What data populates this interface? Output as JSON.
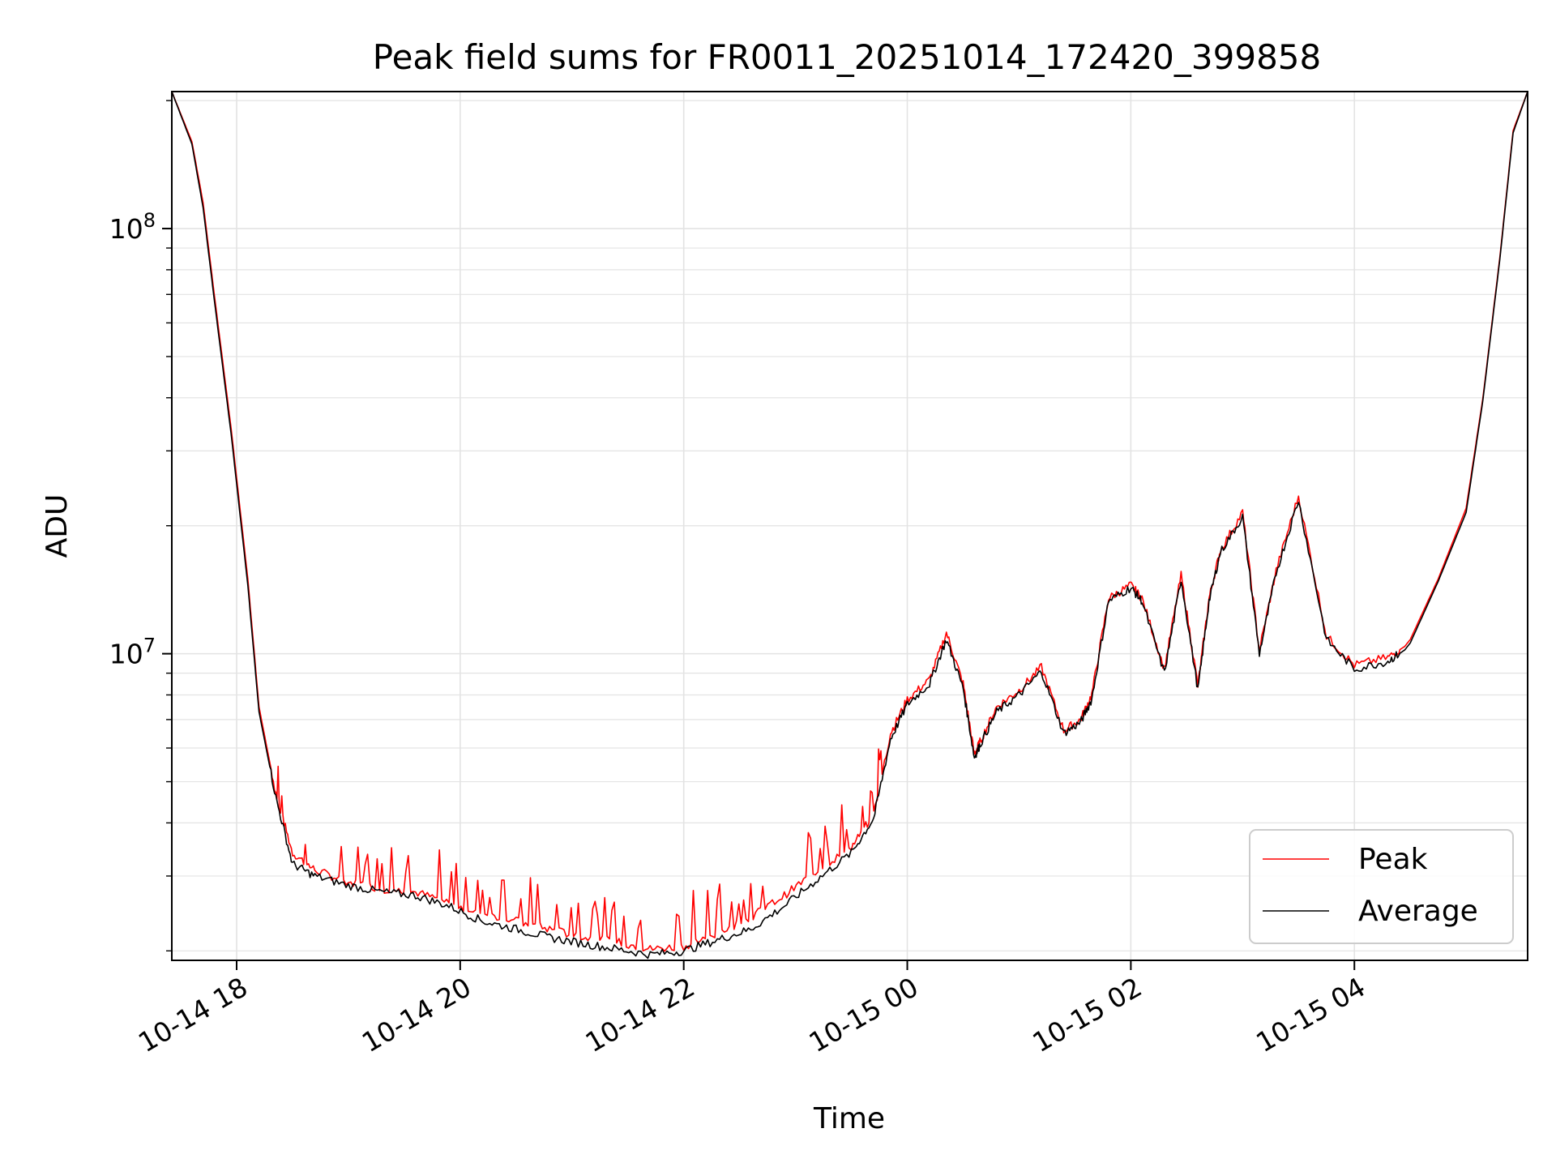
{
  "chart_data": {
    "type": "line",
    "title": "Peak field sums for FR0011_20251014_172420_399858",
    "xlabel": "Time",
    "ylabel": "ADU",
    "yscale": "log",
    "ylim": [
      1900000,
      210000000
    ],
    "xlim_hours": [
      17.42,
      5.55
    ],
    "x_ticks": [
      "10-14 18",
      "10-14 20",
      "10-14 22",
      "10-15 00",
      "10-15 02",
      "10-15 04"
    ],
    "x_tick_hours": [
      18,
      20,
      22,
      24,
      26,
      28
    ],
    "y_ticks": [
      {
        "base": "10",
        "exp": "7",
        "value": 10000000
      },
      {
        "base": "10",
        "exp": "8",
        "value": 100000000
      }
    ],
    "grid": true,
    "legend_position": "bottom-right",
    "series": [
      {
        "name": "Peak",
        "color": "#ff0000",
        "hours": [
          17.42,
          17.6,
          17.7,
          17.8,
          17.95,
          18.1,
          18.2,
          18.35,
          18.5,
          18.7,
          19.0,
          19.3,
          19.6,
          19.9,
          20.2,
          20.5,
          20.8,
          21.1,
          21.4,
          21.7,
          22.0,
          22.3,
          22.6,
          22.9,
          23.2,
          23.5,
          23.7,
          23.85,
          24.0,
          24.2,
          24.35,
          24.5,
          24.6,
          24.65,
          24.8,
          25.0,
          25.2,
          25.4,
          25.55,
          25.65,
          25.8,
          26.0,
          26.1,
          26.3,
          26.45,
          26.6,
          26.7,
          26.8,
          27.0,
          27.15,
          27.3,
          27.5,
          27.75,
          28.0,
          28.3,
          28.45,
          28.5,
          28.75,
          29.0,
          29.15,
          29.3,
          29.42,
          29.55
        ],
        "values": [
          210000000,
          160000000,
          115000000,
          70000000,
          34000000,
          15000000,
          7500000,
          4700000,
          3400000,
          3100000,
          2900000,
          2800000,
          2750000,
          2600000,
          2450000,
          2350000,
          2250000,
          2150000,
          2100000,
          2020000,
          2050000,
          2200000,
          2400000,
          2700000,
          3100000,
          3500000,
          4200000,
          6500000,
          7800000,
          8700000,
          11200000,
          8500000,
          5800000,
          6200000,
          7500000,
          8200000,
          9300000,
          6600000,
          7000000,
          8000000,
          13500000,
          14500000,
          13500000,
          9200000,
          15300000,
          8400000,
          13500000,
          17500000,
          21500000,
          10200000,
          15700000,
          23500000,
          11000000,
          9400000,
          9800000,
          10400000,
          10800000,
          15000000,
          22000000,
          40000000,
          85000000,
          170000000,
          210000000
        ]
      },
      {
        "name": "Average",
        "color": "#000000",
        "hours": [
          17.42,
          17.6,
          17.7,
          17.8,
          17.95,
          18.1,
          18.2,
          18.35,
          18.5,
          18.7,
          19.0,
          19.3,
          19.6,
          19.9,
          20.2,
          20.5,
          20.8,
          21.1,
          21.4,
          21.7,
          22.0,
          22.3,
          22.6,
          22.9,
          23.2,
          23.5,
          23.7,
          23.85,
          24.0,
          24.2,
          24.35,
          24.5,
          24.6,
          24.65,
          24.8,
          25.0,
          25.2,
          25.4,
          25.55,
          25.65,
          25.8,
          26.0,
          26.1,
          26.3,
          26.45,
          26.6,
          26.7,
          26.8,
          27.0,
          27.15,
          27.3,
          27.5,
          27.75,
          28.0,
          28.3,
          28.45,
          28.5,
          28.75,
          29.0,
          29.15,
          29.3,
          29.42,
          29.55
        ],
        "values": [
          210000000,
          158000000,
          112000000,
          68000000,
          33000000,
          14500000,
          7300000,
          4600000,
          3200000,
          3000000,
          2850000,
          2750000,
          2700000,
          2550000,
          2350000,
          2250000,
          2150000,
          2080000,
          2020000,
          1960000,
          2000000,
          2120000,
          2250000,
          2550000,
          2950000,
          3400000,
          4100000,
          6300000,
          7600000,
          8500000,
          10800000,
          8300000,
          5700000,
          6100000,
          7300000,
          8000000,
          9100000,
          6500000,
          6900000,
          7800000,
          13300000,
          14300000,
          13300000,
          9000000,
          15000000,
          8200000,
          13300000,
          17300000,
          21000000,
          10000000,
          15500000,
          23000000,
          10800000,
          9200000,
          9600000,
          10200000,
          10600000,
          14800000,
          21500000,
          39500000,
          84000000,
          168000000,
          210000000
        ]
      }
    ]
  }
}
